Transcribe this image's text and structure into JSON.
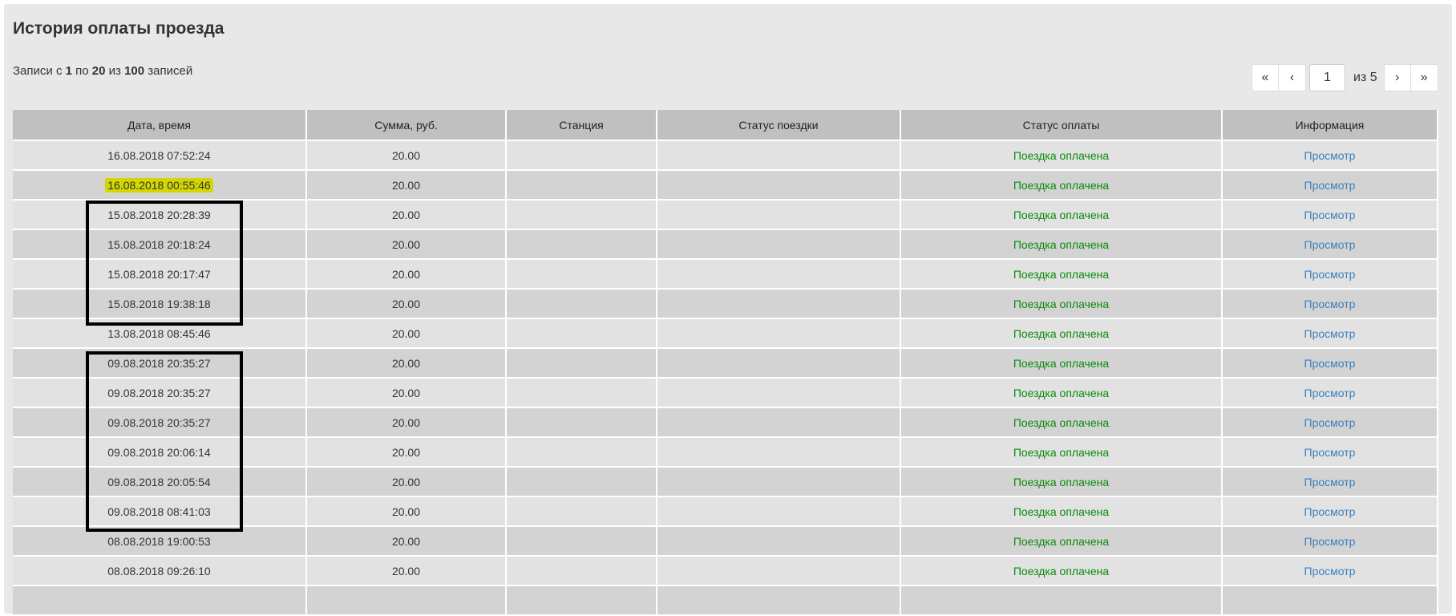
{
  "page": {
    "title": "История оплаты проезда",
    "records_info": {
      "prefix": "Записи с",
      "from": "1",
      "to_word": "по",
      "to": "20",
      "of_word": "из",
      "total": "100",
      "suffix": "записей"
    }
  },
  "pagination": {
    "first": "«",
    "prev": "‹",
    "current": "1",
    "of_label": "из 5",
    "next": "›",
    "last": "»"
  },
  "table": {
    "headers": [
      "Дата, время",
      "Сумма, руб.",
      "Станция",
      "Статус поездки",
      "Статус оплаты",
      "Информация"
    ],
    "rows": [
      {
        "datetime": "16.08.2018 07:52:24",
        "amount": "20.00",
        "station": "",
        "trip_status": "",
        "payment_status": "Поездка оплачена",
        "info": "Просмотр"
      },
      {
        "datetime": "16.08.2018 00:55:46",
        "amount": "20.00",
        "station": "",
        "trip_status": "",
        "payment_status": "Поездка оплачена",
        "info": "Просмотр"
      },
      {
        "datetime": "15.08.2018 20:28:39",
        "amount": "20.00",
        "station": "",
        "trip_status": "",
        "payment_status": "Поездка оплачена",
        "info": "Просмотр"
      },
      {
        "datetime": "15.08.2018 20:18:24",
        "amount": "20.00",
        "station": "",
        "trip_status": "",
        "payment_status": "Поездка оплачена",
        "info": "Просмотр"
      },
      {
        "datetime": "15.08.2018 20:17:47",
        "amount": "20.00",
        "station": "",
        "trip_status": "",
        "payment_status": "Поездка оплачена",
        "info": "Просмотр"
      },
      {
        "datetime": "15.08.2018 19:38:18",
        "amount": "20.00",
        "station": "",
        "trip_status": "",
        "payment_status": "Поездка оплачена",
        "info": "Просмотр"
      },
      {
        "datetime": "13.08.2018 08:45:46",
        "amount": "20.00",
        "station": "",
        "trip_status": "",
        "payment_status": "Поездка оплачена",
        "info": "Просмотр"
      },
      {
        "datetime": "09.08.2018 20:35:27",
        "amount": "20.00",
        "station": "",
        "trip_status": "",
        "payment_status": "Поездка оплачена",
        "info": "Просмотр"
      },
      {
        "datetime": "09.08.2018 20:35:27",
        "amount": "20.00",
        "station": "",
        "trip_status": "",
        "payment_status": "Поездка оплачена",
        "info": "Просмотр"
      },
      {
        "datetime": "09.08.2018 20:35:27",
        "amount": "20.00",
        "station": "",
        "trip_status": "",
        "payment_status": "Поездка оплачена",
        "info": "Просмотр"
      },
      {
        "datetime": "09.08.2018 20:06:14",
        "amount": "20.00",
        "station": "",
        "trip_status": "",
        "payment_status": "Поездка оплачена",
        "info": "Просмотр"
      },
      {
        "datetime": "09.08.2018 20:05:54",
        "amount": "20.00",
        "station": "",
        "trip_status": "",
        "payment_status": "Поездка оплачена",
        "info": "Просмотр"
      },
      {
        "datetime": "09.08.2018 08:41:03",
        "amount": "20.00",
        "station": "",
        "trip_status": "",
        "payment_status": "Поездка оплачена",
        "info": "Просмотр"
      },
      {
        "datetime": "08.08.2018 19:00:53",
        "amount": "20.00",
        "station": "",
        "trip_status": "",
        "payment_status": "Поездка оплачена",
        "info": "Просмотр"
      },
      {
        "datetime": "08.08.2018 09:26:10",
        "amount": "20.00",
        "station": "",
        "trip_status": "",
        "payment_status": "Поездка оплачена",
        "info": "Просмотр"
      },
      {
        "datetime": "",
        "amount": "",
        "station": "",
        "trip_status": "",
        "payment_status": "",
        "info": ""
      }
    ]
  },
  "annotations": {
    "highlight_color": "#d4d600",
    "box_color": "#000000"
  },
  "colors": {
    "paid": "#0a8a0a",
    "link": "#3a7fbf",
    "header_bg": "#c0c0c0"
  }
}
